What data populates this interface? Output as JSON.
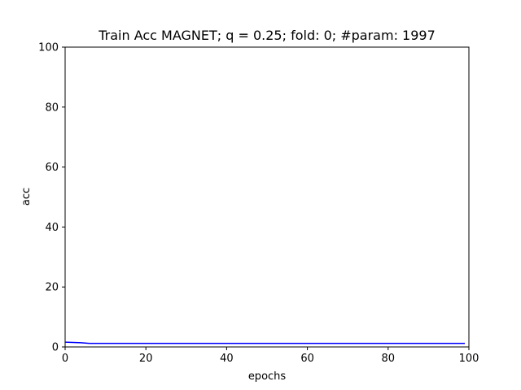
{
  "chart_data": {
    "type": "line",
    "title": "Train Acc MAGNET; q = 0.25; fold: 0; #param: 1997",
    "xlabel": "epochs",
    "ylabel": "acc",
    "xlim": [
      0,
      100
    ],
    "ylim": [
      0,
      100
    ],
    "x_ticks": [
      "0",
      "20",
      "40",
      "60",
      "80",
      "100"
    ],
    "y_ticks": [
      "0",
      "20",
      "40",
      "60",
      "80",
      "100"
    ],
    "grid": false,
    "legend": "none",
    "series": [
      {
        "color": "#0000ff",
        "x": [
          0,
          2,
          4,
          6,
          8,
          10,
          15,
          20,
          30,
          40,
          50,
          60,
          70,
          80,
          90,
          99
        ],
        "y": [
          1.6,
          1.5,
          1.4,
          1.2,
          1.2,
          1.2,
          1.2,
          1.2,
          1.2,
          1.2,
          1.2,
          1.2,
          1.2,
          1.2,
          1.2,
          1.2
        ]
      }
    ]
  }
}
